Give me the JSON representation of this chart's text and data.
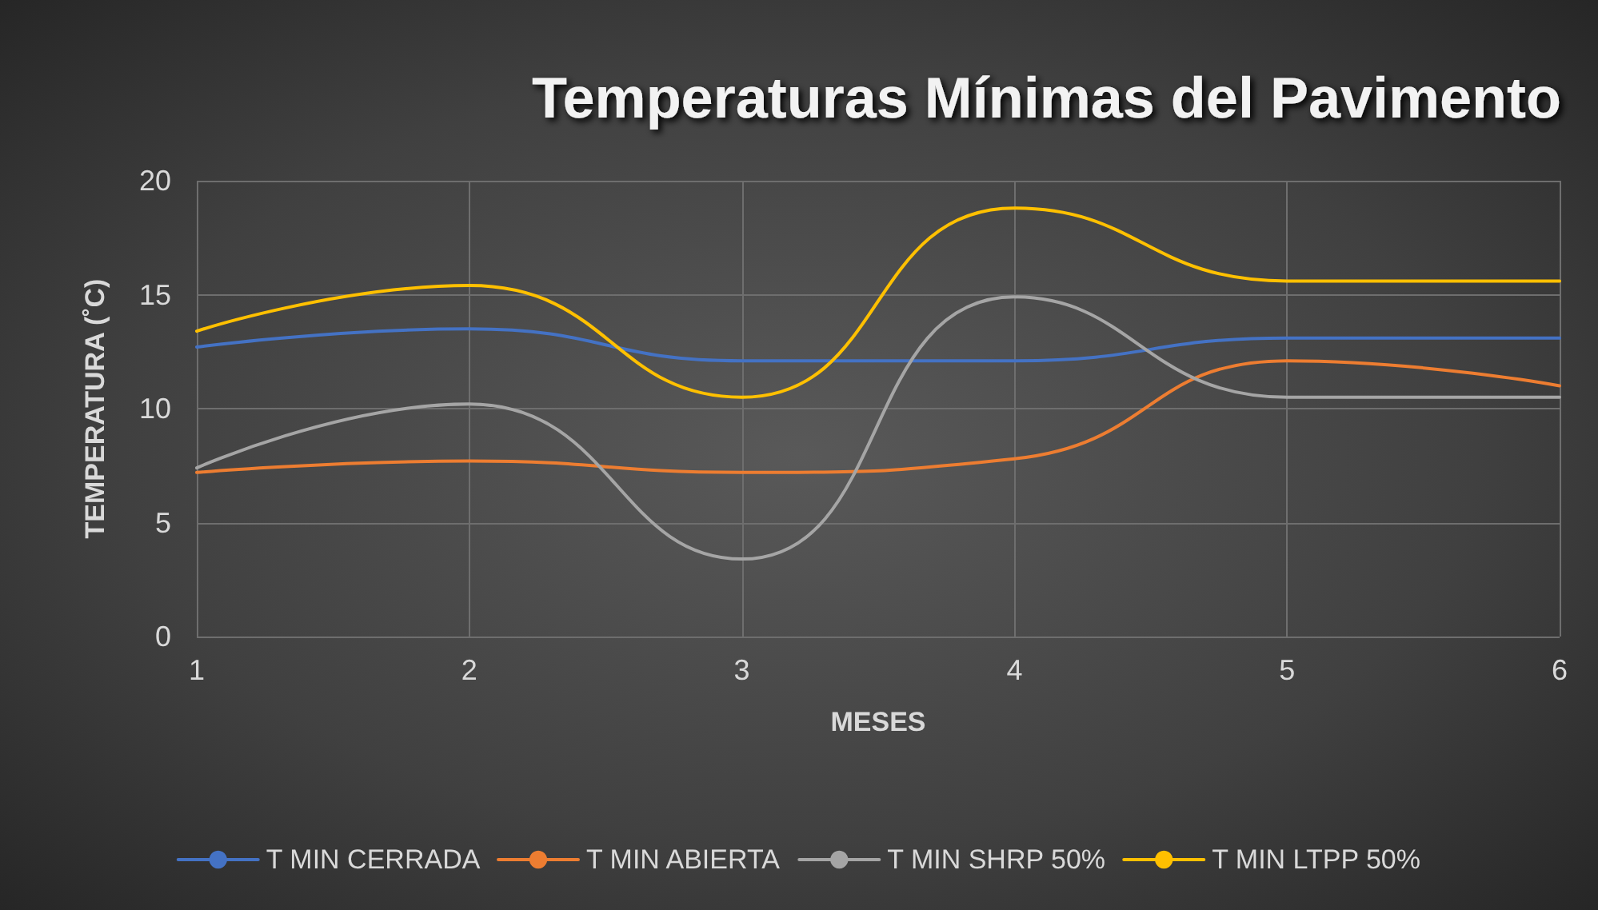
{
  "chart_data": {
    "type": "line",
    "title": "Temperaturas Mínimas del Pavimento",
    "xlabel": "MESES",
    "ylabel": "TEMPERATURA (˚C)",
    "x": [
      1,
      2,
      3,
      4,
      5,
      6
    ],
    "series": [
      {
        "name": "T MIN CERRADA",
        "color": "#4472c4",
        "values": [
          12.7,
          13.5,
          12.1,
          12.1,
          13.1,
          13.1
        ]
      },
      {
        "name": "T MIN ABIERTA",
        "color": "#ed7d31",
        "values": [
          7.2,
          7.7,
          7.2,
          7.8,
          12.1,
          11.0
        ]
      },
      {
        "name": "T MIN SHRP 50%",
        "color": "#a5a5a5",
        "values": [
          7.4,
          10.2,
          3.4,
          14.9,
          10.5,
          10.5
        ]
      },
      {
        "name": "T MIN LTPP 50%",
        "color": "#ffc000",
        "values": [
          13.4,
          15.4,
          10.5,
          18.8,
          15.6,
          15.6
        ]
      }
    ],
    "xlim": [
      1,
      6
    ],
    "xticks": [
      1,
      2,
      3,
      4,
      5,
      6
    ],
    "ylim": [
      0,
      20
    ],
    "yticks": [
      0,
      5,
      10,
      15,
      20
    ],
    "grid": true,
    "legend": "bottom",
    "line_style": "solid"
  }
}
